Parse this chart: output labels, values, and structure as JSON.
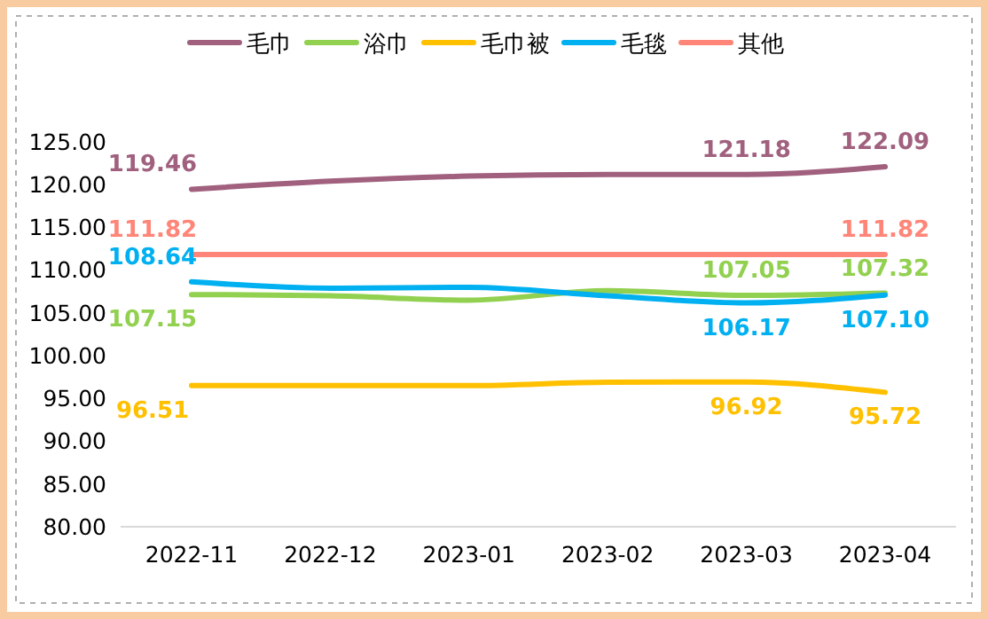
{
  "chart_data": {
    "type": "line",
    "categories": [
      "2022-11",
      "2022-12",
      "2023-01",
      "2023-02",
      "2023-03",
      "2023-04"
    ],
    "ylim": [
      80,
      125
    ],
    "yticks": [
      {
        "value": 80,
        "label": "80.00"
      },
      {
        "value": 85,
        "label": "85.00"
      },
      {
        "value": 90,
        "label": "90.00"
      },
      {
        "value": 95,
        "label": "95.00"
      },
      {
        "value": 100,
        "label": "100.00"
      },
      {
        "value": 105,
        "label": "105.00"
      },
      {
        "value": 110,
        "label": "110.00"
      },
      {
        "value": 115,
        "label": "115.00"
      },
      {
        "value": 120,
        "label": "120.00"
      },
      {
        "value": 125,
        "label": "125.00"
      }
    ],
    "grid": false,
    "legend": "top",
    "marker": "none",
    "line_style": "solid",
    "series": [
      {
        "name": "毛巾",
        "color": "#a0607e",
        "values": [
          119.46,
          120.4,
          121.0,
          121.2,
          121.18,
          122.09
        ],
        "value_labels": [
          "119.46",
          null,
          null,
          null,
          "121.18",
          "122.09"
        ]
      },
      {
        "name": "浴巾",
        "color": "#92d050",
        "values": [
          107.15,
          107.0,
          106.5,
          107.6,
          107.05,
          107.32
        ],
        "value_labels": [
          "107.15",
          null,
          null,
          null,
          "107.05",
          "107.32"
        ]
      },
      {
        "name": "毛巾被",
        "color": "#ffc000",
        "values": [
          96.51,
          96.5,
          96.5,
          96.9,
          96.92,
          95.72
        ],
        "value_labels": [
          "96.51",
          null,
          null,
          null,
          "96.92",
          "95.72"
        ]
      },
      {
        "name": "毛毯",
        "color": "#00b0f0",
        "values": [
          108.64,
          107.9,
          108.0,
          107.0,
          106.17,
          107.1
        ],
        "value_labels": [
          "108.64",
          null,
          null,
          null,
          "106.17",
          "107.10"
        ]
      },
      {
        "name": "其他",
        "color": "#ff8578",
        "values": [
          111.82,
          111.82,
          111.82,
          111.82,
          111.82,
          111.82
        ],
        "value_labels": [
          "111.82",
          null,
          null,
          null,
          null,
          "111.82"
        ]
      }
    ]
  }
}
